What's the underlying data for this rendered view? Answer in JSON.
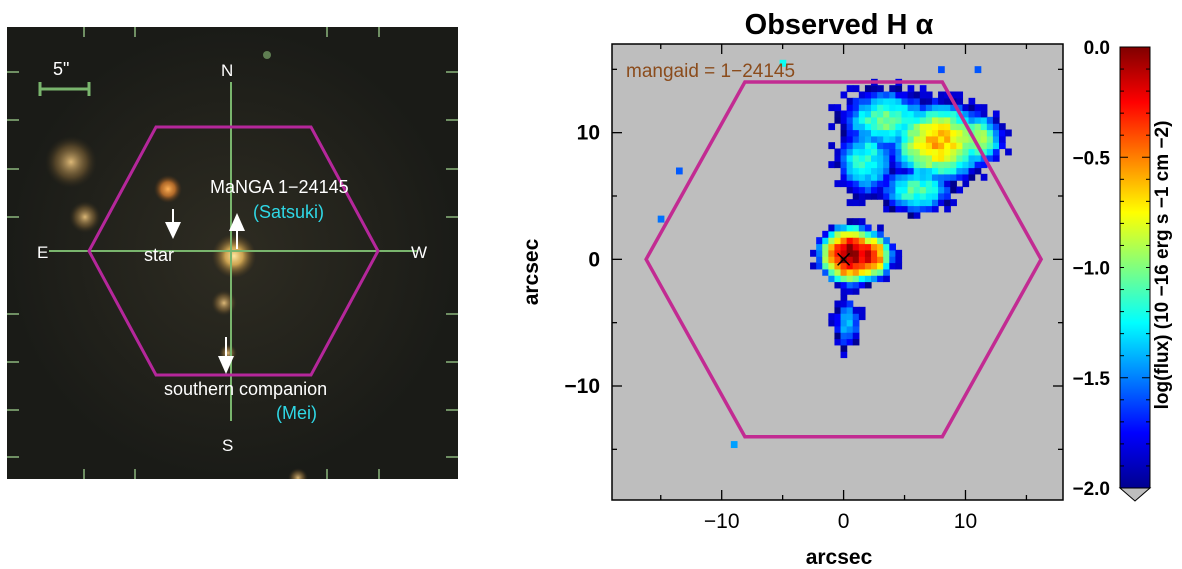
{
  "left_panel": {
    "scale_bar_label": "5\"",
    "compass": {
      "north": "N",
      "south": "S",
      "east": "E",
      "west": "W"
    },
    "main_galaxy_label": "MaNGA 1−24145",
    "main_galaxy_nickname": "(Satsuki)",
    "star_label": "star",
    "companion_label": "southern companion",
    "companion_nickname": "(Mei)",
    "colors": {
      "hexagon": "#b5279b",
      "nickname": "#2fd8e6",
      "crosshair": "#79b56d",
      "text": "#ffffff"
    }
  },
  "chart_data": {
    "type": "heatmap",
    "title": "Observed H α",
    "annotation": "mangaid = 1−24145",
    "xlabel": "arcsec",
    "ylabel": "arcsec",
    "xlim": [
      -19,
      18
    ],
    "ylim": [
      -19,
      17
    ],
    "xticks": [
      -10,
      0,
      10
    ],
    "xtick_labels": [
      "−10",
      "0",
      "10"
    ],
    "yticks": [
      -10,
      0,
      10
    ],
    "ytick_labels": [
      "−10",
      "0",
      "10"
    ],
    "background": "#bebebe",
    "colorbar": {
      "label": "log(flux) (10 −16 erg s −1 cm −2)",
      "range": [
        -2.0,
        0.0
      ],
      "ticks": [
        0.0,
        -0.5,
        -1.0,
        -1.5,
        -2.0
      ],
      "tick_labels": [
        "0.0",
        "−0.5",
        "−1.0",
        "−1.5",
        "−2.0"
      ],
      "colormap": "jet"
    },
    "hexagon": {
      "vertices": [
        [
          -16.2,
          0
        ],
        [
          -8.1,
          14.0
        ],
        [
          8.1,
          14.0
        ],
        [
          16.2,
          0
        ],
        [
          8.1,
          -14.0
        ],
        [
          -8.1,
          -14.0
        ]
      ],
      "color": "#c22b92"
    },
    "center_marker": {
      "x": 0,
      "y": 0,
      "symbol": "x"
    },
    "emission_regions": [
      {
        "name": "nucleus",
        "x": 0.6,
        "y": 0.4,
        "sx": 1.6,
        "sy": 1.4,
        "peak": 0.0
      },
      {
        "name": "nucleus-extension",
        "x": 2.0,
        "y": 0.3,
        "sx": 1.3,
        "sy": 1.2,
        "peak": -0.2
      },
      {
        "name": "bright-knot-ne",
        "x": 7.8,
        "y": 9.3,
        "sx": 2.8,
        "sy": 2.2,
        "peak": -0.6
      },
      {
        "name": "tail-upper",
        "x": 3.5,
        "y": 11.0,
        "sx": 3.0,
        "sy": 2.0,
        "peak": -1.05
      },
      {
        "name": "tail-mid",
        "x": 1.8,
        "y": 7.8,
        "sx": 2.0,
        "sy": 2.4,
        "peak": -1.15
      },
      {
        "name": "arm-lower",
        "x": 6.0,
        "y": 5.5,
        "sx": 2.5,
        "sy": 1.5,
        "peak": -1.1
      },
      {
        "name": "east-knot",
        "x": 11.0,
        "y": 9.5,
        "sx": 1.6,
        "sy": 1.6,
        "peak": -0.9
      },
      {
        "name": "southern-filament",
        "x": 0.3,
        "y": -5.0,
        "sx": 0.9,
        "sy": 1.8,
        "peak": -1.3
      }
    ]
  }
}
